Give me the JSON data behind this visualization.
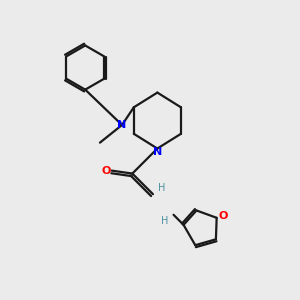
{
  "background_color": "#ebebeb",
  "bond_color": "#1a1a1a",
  "N_color": "#0000ff",
  "O_color": "#ff0000",
  "H_color": "#4a8fa0",
  "bond_width": 1.6,
  "figsize": [
    3.0,
    3.0
  ],
  "dpi": 100,
  "xlim": [
    0,
    10
  ],
  "ylim": [
    0,
    10
  ]
}
